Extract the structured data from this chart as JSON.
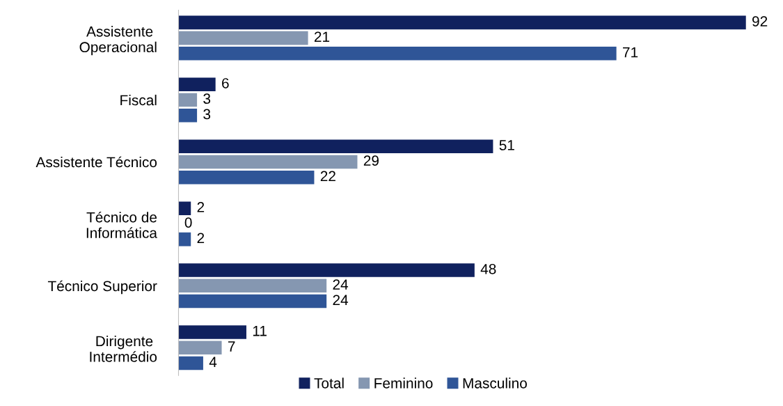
{
  "chart_data": {
    "type": "bar",
    "orientation": "horizontal",
    "relative": false,
    "data_labels": true,
    "legend": "bottom",
    "grid": false,
    "categories": [
      "Assistente \nOperacional",
      "Fiscal",
      "Assistente Técnico",
      "Técnico de\nInformática",
      "Técnico Superior",
      "Dirigente \nIntermédio"
    ],
    "series": [
      {
        "name": "Total",
        "color": "#10215e",
        "values": [
          92,
          6,
          51,
          2,
          48,
          11
        ]
      },
      {
        "name": "Feminino",
        "color": "#8597b1",
        "values": [
          21,
          3,
          29,
          0,
          24,
          7
        ]
      },
      {
        "name": "Masculino",
        "color": "#2f5597",
        "values": [
          71,
          3,
          22,
          2,
          24,
          4
        ]
      }
    ]
  }
}
